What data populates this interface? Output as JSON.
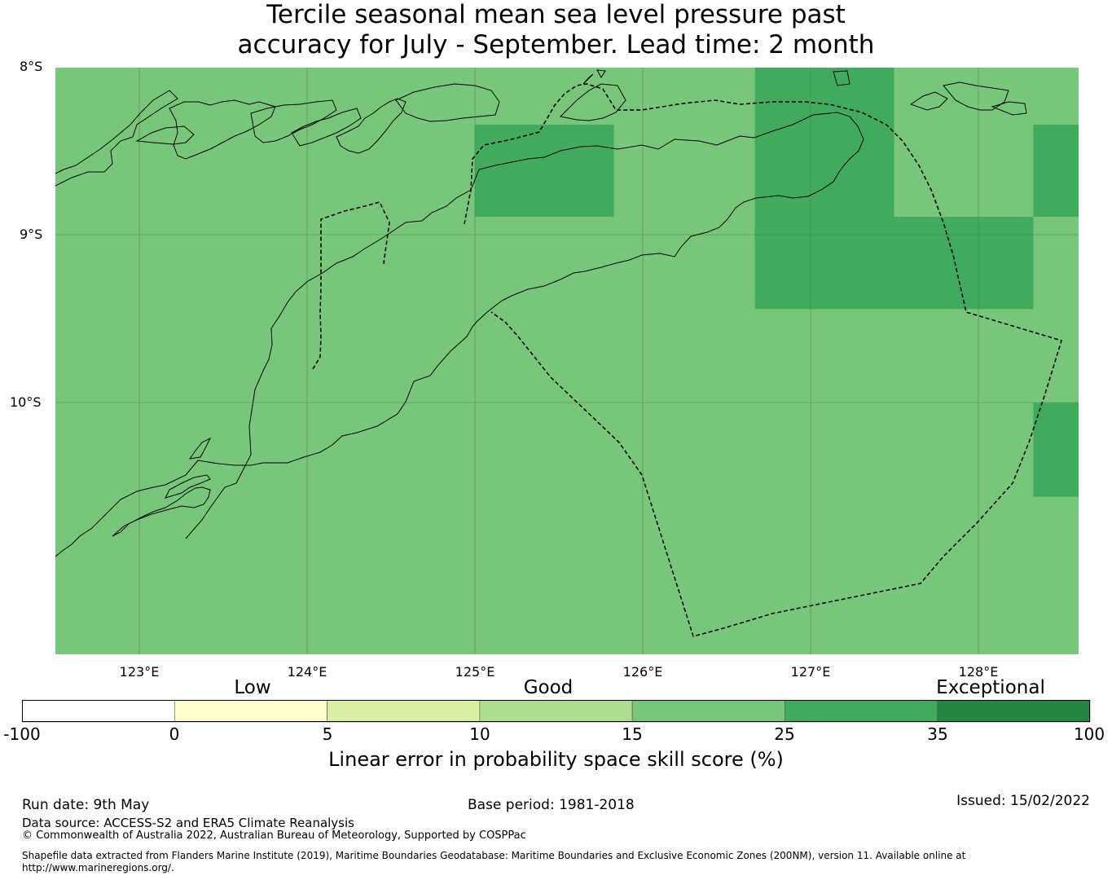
{
  "title": {
    "line1": "Tercile seasonal mean sea level pressure past",
    "line2": "accuracy for July - September. Lead time: 2 month"
  },
  "map": {
    "lat_labels": [
      "8°S",
      "9°S",
      "10°S"
    ],
    "lon_labels": [
      "123°E",
      "124°E",
      "125°E",
      "126°E",
      "127°E",
      "128°E"
    ],
    "extent": {
      "lon_min": 122.5,
      "lon_max": 128.6,
      "lat_min": -11.5,
      "lat_max": -8.0
    },
    "background_color": "#78c679",
    "cells": [
      {
        "lon": [
          125.0,
          125.83
        ],
        "lat": [
          -8.34,
          -8.89
        ],
        "color": "#41ab5d"
      },
      {
        "lon": [
          126.67,
          127.5
        ],
        "lat": [
          -8.0,
          -8.89
        ],
        "color": "#41ab5d"
      },
      {
        "lon": [
          126.67,
          128.33
        ],
        "lat": [
          -8.89,
          -9.44
        ],
        "color": "#41ab5d"
      },
      {
        "lon": [
          128.33,
          128.6
        ],
        "lat": [
          -8.34,
          -8.89
        ],
        "color": "#41ab5d"
      },
      {
        "lon": [
          128.33,
          128.6
        ],
        "lat": [
          -10.0,
          -10.56
        ],
        "color": "#41ab5d"
      }
    ]
  },
  "colorbar": {
    "categories": [
      "Low",
      "Good",
      "Exceptional"
    ],
    "ticks": [
      "-100",
      "0",
      "5",
      "10",
      "15",
      "25",
      "35",
      "100"
    ],
    "colors": [
      "#ffffff",
      "#ffffcc",
      "#d9f0a3",
      "#addd8e",
      "#78c679",
      "#41ab5d",
      "#238443"
    ],
    "label": "Linear error in probability space skill score (%)"
  },
  "footer": {
    "run_date": "Run date: 9th May",
    "base_period": "Base period: 1981-2018",
    "issued": "Issued: 15/02/2022",
    "data_source": "Data source: ACCESS-S2 and ERA5 Climate Reanalysis",
    "copyright": "© Commonwealth of Australia 2022, Australian Bureau of Meteorology, Supported by COSPPac",
    "shapefile_line1": "Shapefile data extracted from Flanders Marine Institute (2019), Maritime Boundaries Geodatabase: Maritime Boundaries and Exclusive Economic Zones (200NM), version 11. Available online at",
    "shapefile_line2": "http://www.marineregions.org/."
  }
}
